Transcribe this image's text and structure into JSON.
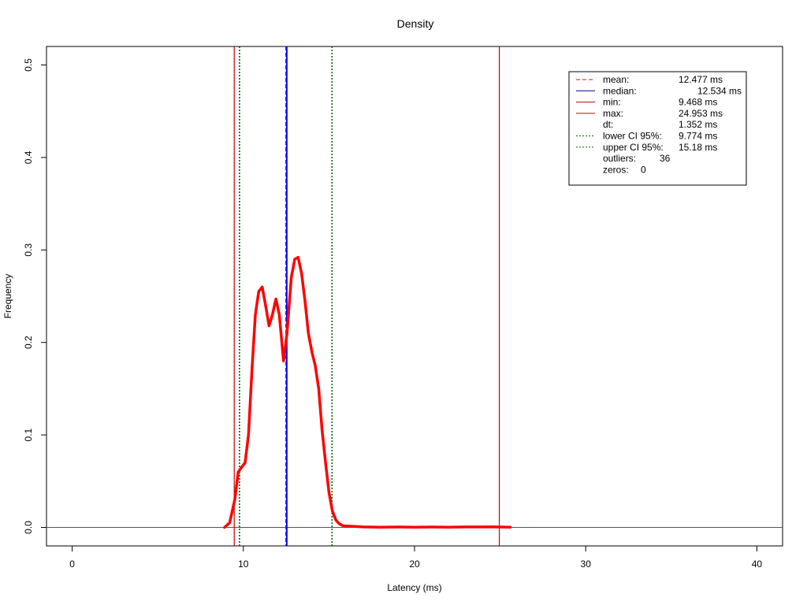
{
  "chart_data": {
    "type": "line",
    "title": "Density",
    "xlabel": "Latency (ms)",
    "ylabel": "Frequency",
    "xlim": [
      -1.5,
      41.5
    ],
    "ylim": [
      -0.02,
      0.52
    ],
    "x_ticks": [
      0,
      10,
      20,
      30,
      40
    ],
    "y_ticks": [
      0.0,
      0.1,
      0.2,
      0.3,
      0.4,
      0.5
    ],
    "y_tick_labels": [
      "0.0",
      "0.1",
      "0.2",
      "0.3",
      "0.4",
      "0.5"
    ],
    "grid": false,
    "legend_position": "top-right",
    "series": [
      {
        "color": "#ff0000",
        "x": [
          8.9,
          9.2,
          9.5,
          9.7,
          9.9,
          10.1,
          10.3,
          10.5,
          10.7,
          10.9,
          11.1,
          11.3,
          11.5,
          11.7,
          11.9,
          12.1,
          12.35,
          12.55,
          12.8,
          13.0,
          13.2,
          13.4,
          13.6,
          13.8,
          14.0,
          14.2,
          14.4,
          14.6,
          14.8,
          15.0,
          15.2,
          15.4,
          15.6,
          15.8,
          16.0,
          16.5,
          17.0,
          18.0,
          19.0,
          20.0,
          21.0,
          22.0,
          23.0,
          24.0,
          24.5,
          25.0,
          25.6
        ],
        "y": [
          0.0,
          0.005,
          0.03,
          0.06,
          0.065,
          0.07,
          0.1,
          0.17,
          0.23,
          0.255,
          0.26,
          0.24,
          0.218,
          0.23,
          0.247,
          0.23,
          0.18,
          0.21,
          0.27,
          0.29,
          0.292,
          0.275,
          0.245,
          0.21,
          0.19,
          0.175,
          0.15,
          0.105,
          0.07,
          0.038,
          0.018,
          0.008,
          0.004,
          0.002,
          0.0015,
          0.001,
          0.0005,
          0.0003,
          0.0004,
          0.0003,
          0.0004,
          0.0003,
          0.0005,
          0.0005,
          0.0006,
          0.0004,
          0.0003
        ]
      }
    ],
    "reference_lines": [
      {
        "label": "mean:",
        "x": 12.477,
        "color": "#ff0000",
        "style": "dashed"
      },
      {
        "label": "median:",
        "x": 12.534,
        "color": "#0000ff",
        "style": "solid"
      },
      {
        "label": "min:",
        "x": 9.468,
        "color": "#cc0000",
        "style": "solid"
      },
      {
        "label": "max:",
        "x": 24.953,
        "color": "#cc0000",
        "style": "solid"
      },
      {
        "label": "lower CI 95%:",
        "x": 9.774,
        "color": "#006400",
        "style": "dotted"
      },
      {
        "label": "upper CI 95%:",
        "x": 15.18,
        "color": "#006400",
        "style": "dotted"
      }
    ],
    "legend": [
      {
        "label": "mean:",
        "value": "12.477 ms",
        "color": "#ff0000",
        "style": "dashed"
      },
      {
        "label": "median:",
        "value": "12.534 ms",
        "color": "#00008b",
        "style": "solid"
      },
      {
        "label": "min:",
        "value": "9.468 ms",
        "color": "#cc0000",
        "style": "solid"
      },
      {
        "label": "max:",
        "value": "24.953 ms",
        "color": "#cc0000",
        "style": "solid"
      },
      {
        "label": "dt:",
        "value": "1.352 ms",
        "color": "",
        "style": "none"
      },
      {
        "label": "lower CI 95%:",
        "value": "9.774 ms",
        "color": "#006400",
        "style": "dotted"
      },
      {
        "label": "upper CI 95%:",
        "value": "15.18 ms",
        "color": "#006400",
        "style": "dotted"
      },
      {
        "label": "outliers:",
        "value": "36",
        "color": "",
        "style": "none"
      },
      {
        "label": "zeros:",
        "value": "0",
        "color": "",
        "style": "none"
      }
    ]
  }
}
